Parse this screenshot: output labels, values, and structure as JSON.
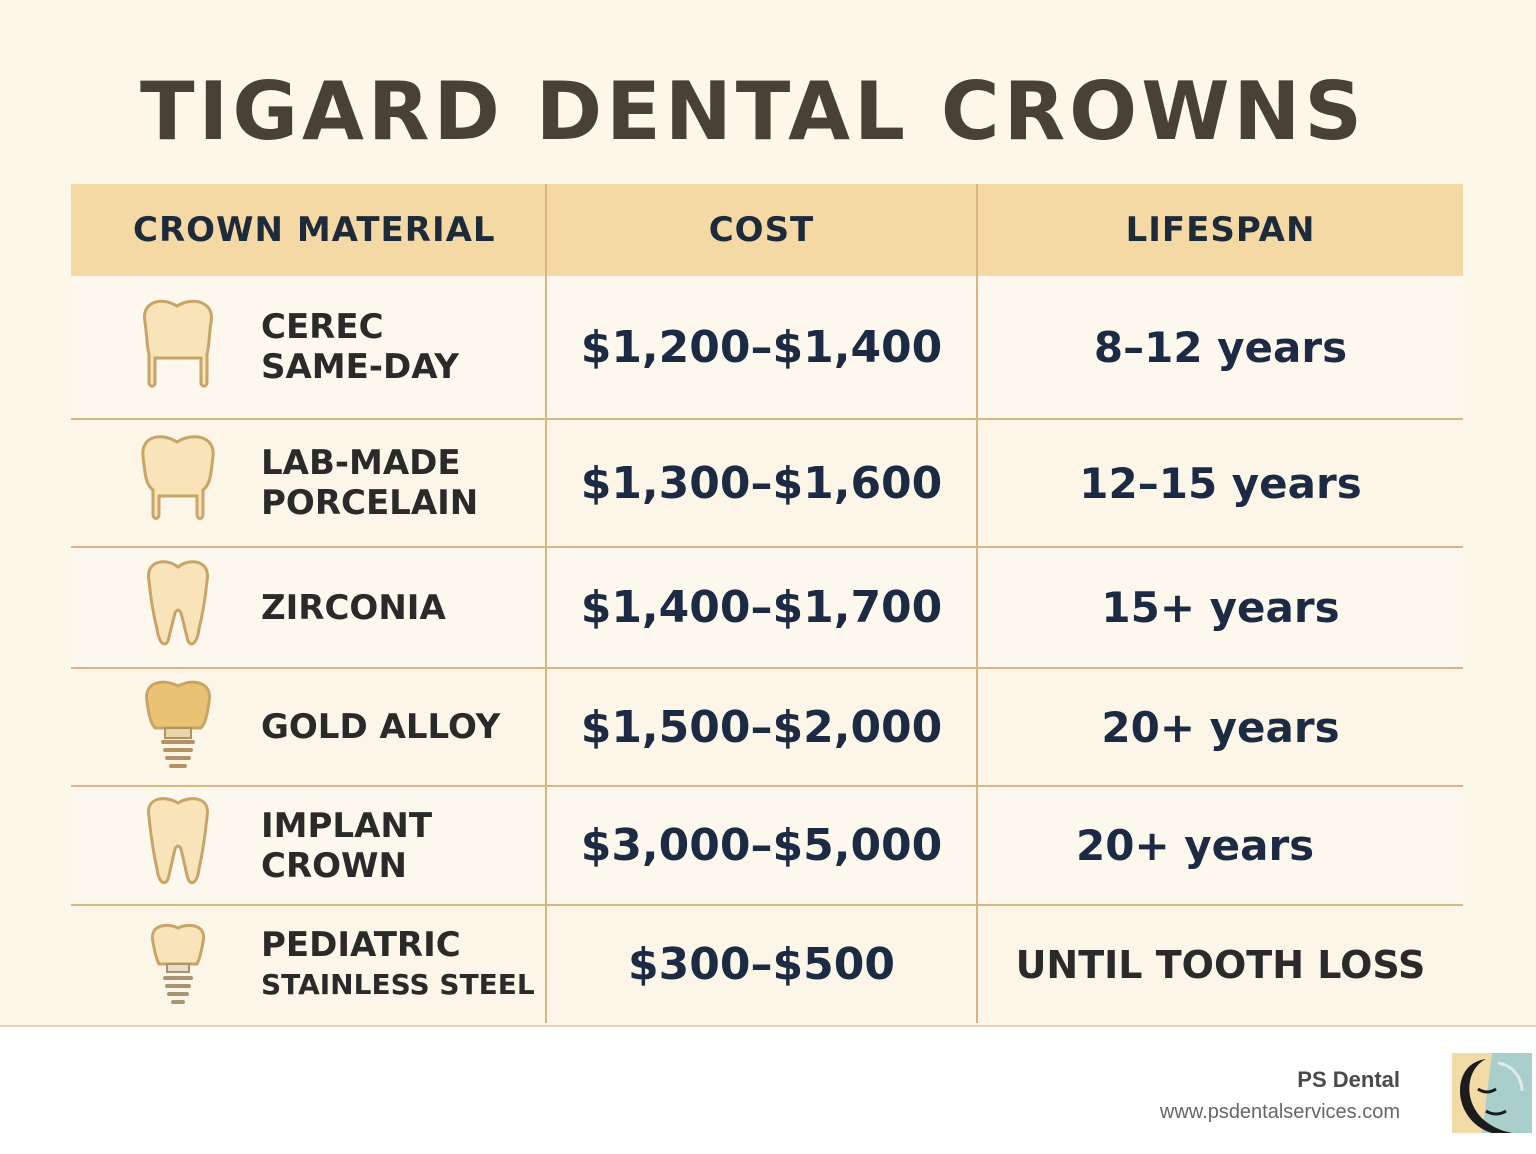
{
  "title": "TIGARD DENTAL CROWNS",
  "headers": {
    "material": "CROWN MATERIAL",
    "cost": "COST",
    "lifespan": "LIFESPAN"
  },
  "rows": [
    {
      "material_line1": "CEREC",
      "material_line2": "SAME-DAY",
      "cost": "$1,200–$1,400",
      "lifespan": "8–12 years",
      "icon": "crown-tooth-icon"
    },
    {
      "material_line1": "LAB-MADE",
      "material_line2": "PORCELAIN",
      "cost": "$1,300–$1,600",
      "lifespan": "12–15 years",
      "icon": "crown-tooth-icon"
    },
    {
      "material_line1": "ZIRCONIA",
      "material_line2": "",
      "cost": "$1,400–$1,700",
      "lifespan": "15+ years",
      "icon": "molar-tooth-icon"
    },
    {
      "material_line1": "GOLD ALLOY",
      "material_line2": "",
      "cost": "$1,500–$2,000",
      "lifespan": "20+ years",
      "icon": "gold-implant-icon"
    },
    {
      "material_line1": "IMPLANT",
      "material_line2": "CROWN",
      "cost": "$3,000–$5,000",
      "lifespan": "20+ years",
      "icon": "tooth-icon"
    },
    {
      "material_line1": "PEDIATRIC",
      "material_line2": "STAINLESS STEEL",
      "cost": "$300–$500",
      "lifespan": "UNTIL TOOTH LOSS",
      "icon": "small-implant-icon"
    }
  ],
  "footer": {
    "brand_name": "PS Dental",
    "brand_url": "www.psdentalservices.com"
  },
  "colors": {
    "background": "#fbf7e9",
    "header_bg": "#f5d9a5",
    "border": "#d8b682",
    "tooth_fill": "#f8e4b8",
    "tooth_stroke": "#c9a468",
    "gold_fill": "#e9c373"
  }
}
